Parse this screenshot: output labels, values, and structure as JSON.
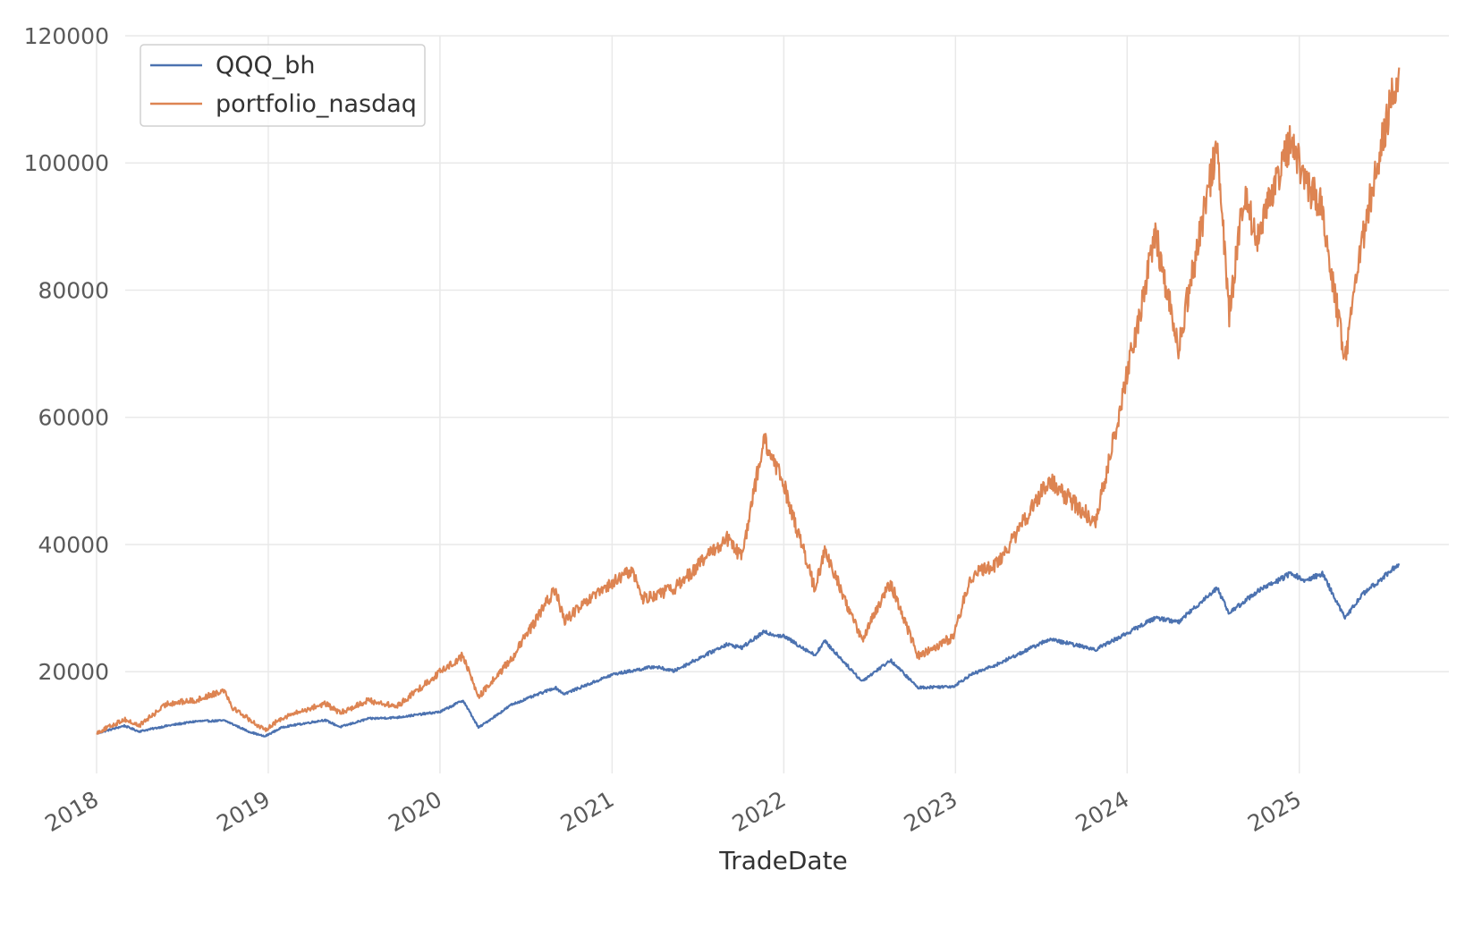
{
  "chart_data": {
    "type": "line",
    "title": "",
    "xlabel": "TradeDate",
    "ylabel": "",
    "x_type": "date",
    "xlim": [
      "2018-01-01",
      "2025-11-15"
    ],
    "ylim": [
      4000,
      120000
    ],
    "grid": true,
    "legend_position": "top-left",
    "x_ticks": [
      "2018-01-01",
      "2019-01-01",
      "2020-01-01",
      "2021-01-01",
      "2022-01-01",
      "2023-01-01",
      "2024-01-01",
      "2025-01-01"
    ],
    "x_tick_labels": [
      "2018",
      "2019",
      "2020",
      "2021",
      "2022",
      "2023",
      "2024",
      "2025"
    ],
    "y_ticks": [
      20000,
      40000,
      60000,
      80000,
      100000,
      120000
    ],
    "y_tick_labels": [
      "20000",
      "40000",
      "60000",
      "80000",
      "100000",
      "120000"
    ],
    "series": [
      {
        "name": "QQQ_bh",
        "color": "#4c72b0",
        "x": [
          "2018-01-02",
          "2018-03-01",
          "2018-04-01",
          "2018-06-01",
          "2018-08-01",
          "2018-10-01",
          "2018-11-20",
          "2018-12-24",
          "2019-02-01",
          "2019-05-01",
          "2019-06-03",
          "2019-08-01",
          "2019-10-01",
          "2020-01-02",
          "2020-02-19",
          "2020-03-23",
          "2020-06-01",
          "2020-09-02",
          "2020-09-21",
          "2021-01-04",
          "2021-04-01",
          "2021-05-12",
          "2021-09-01",
          "2021-10-04",
          "2021-11-19",
          "2022-01-03",
          "2022-03-08",
          "2022-03-29",
          "2022-06-16",
          "2022-08-16",
          "2022-10-13",
          "2022-12-28",
          "2023-02-02",
          "2023-04-01",
          "2023-07-19",
          "2023-10-26",
          "2024-01-02",
          "2024-03-01",
          "2024-04-19",
          "2024-07-10",
          "2024-08-05",
          "2024-10-01",
          "2024-12-16",
          "2025-01-13",
          "2025-02-19",
          "2025-04-08",
          "2025-05-13",
          "2025-06-15",
          "2025-08-01"
        ],
        "values": [
          10300,
          11500,
          10600,
          11500,
          12200,
          12300,
          10600,
          9800,
          11300,
          12400,
          11300,
          12600,
          12800,
          13700,
          15500,
          11200,
          14800,
          17500,
          16500,
          19600,
          20800,
          20100,
          24300,
          23800,
          26200,
          25500,
          22600,
          24800,
          18500,
          21800,
          17500,
          17700,
          19500,
          21200,
          25100,
          23500,
          26100,
          28500,
          27800,
          33200,
          29200,
          32500,
          35500,
          34200,
          35500,
          28400,
          32000,
          34000,
          37000
        ]
      },
      {
        "name": "portfolio_nasdaq",
        "color": "#dd8452",
        "x": [
          "2018-01-02",
          "2018-03-01",
          "2018-04-01",
          "2018-06-01",
          "2018-08-01",
          "2018-10-01",
          "2018-10-15",
          "2018-12-24",
          "2019-02-01",
          "2019-05-01",
          "2019-06-03",
          "2019-08-01",
          "2019-10-01",
          "2020-01-02",
          "2020-02-19",
          "2020-03-23",
          "2020-06-01",
          "2020-09-02",
          "2020-09-21",
          "2020-11-09",
          "2021-01-04",
          "2021-02-12",
          "2021-03-08",
          "2021-05-12",
          "2021-09-01",
          "2021-10-04",
          "2021-11-19",
          "2022-01-03",
          "2022-03-08",
          "2022-03-29",
          "2022-06-16",
          "2022-08-16",
          "2022-10-13",
          "2022-12-28",
          "2023-02-02",
          "2023-04-01",
          "2023-07-19",
          "2023-10-26",
          "2024-01-02",
          "2024-03-01",
          "2024-04-19",
          "2024-07-10",
          "2024-08-05",
          "2024-09-06",
          "2024-10-01",
          "2024-12-16",
          "2025-01-13",
          "2025-02-19",
          "2025-04-08",
          "2025-05-13",
          "2025-06-15",
          "2025-08-01"
        ],
        "values": [
          10400,
          12500,
          11500,
          15000,
          15500,
          17200,
          14500,
          10800,
          12800,
          15000,
          13500,
          15500,
          14500,
          20000,
          22500,
          16000,
          22000,
          33000,
          28000,
          31000,
          34000,
          36000,
          31500,
          33000,
          41000,
          38000,
          56500,
          49000,
          33000,
          39000,
          25000,
          34000,
          22500,
          25500,
          35000,
          37000,
          50000,
          43500,
          67000,
          89000,
          71000,
          103000,
          76000,
          96000,
          88000,
          104000,
          97000,
          93000,
          68500,
          87000,
          100000,
          115000
        ]
      }
    ]
  }
}
